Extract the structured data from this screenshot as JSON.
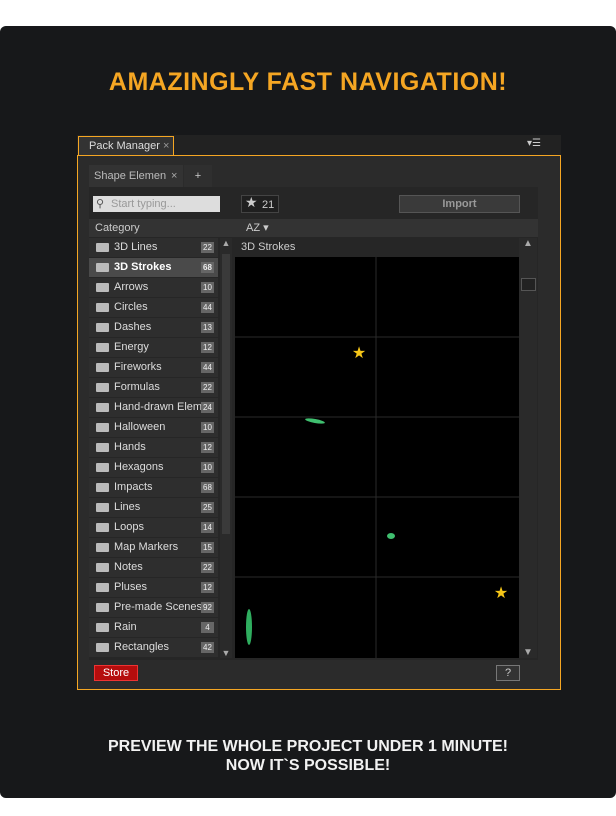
{
  "header": {
    "title": "AMAZINGLY FAST NAVIGATION!"
  },
  "panel": {
    "tab": "Pack Manager",
    "subtab": "Shape Elemen",
    "add_tab": "+",
    "search_placeholder": "Start typing...",
    "favorites": 21,
    "import": "Import",
    "category_header": "Category",
    "sort": "AZ",
    "preview_title": "3D Strokes",
    "store": "Store",
    "help": "?",
    "categories": [
      {
        "name": "3D Lines",
        "count": 22
      },
      {
        "name": "3D Strokes",
        "count": 68
      },
      {
        "name": "Arrows",
        "count": 10
      },
      {
        "name": "Circles",
        "count": 44
      },
      {
        "name": "Dashes",
        "count": 13
      },
      {
        "name": "Energy",
        "count": 12
      },
      {
        "name": "Fireworks",
        "count": 44
      },
      {
        "name": "Formulas",
        "count": 22
      },
      {
        "name": "Hand-drawn Elem",
        "count": 24
      },
      {
        "name": "Halloween",
        "count": 10
      },
      {
        "name": "Hands",
        "count": 12
      },
      {
        "name": "Hexagons",
        "count": 10
      },
      {
        "name": "Impacts",
        "count": 68
      },
      {
        "name": "Lines",
        "count": 25
      },
      {
        "name": "Loops",
        "count": 14
      },
      {
        "name": "Map Markers",
        "count": 15
      },
      {
        "name": "Notes",
        "count": 22
      },
      {
        "name": "Pluses",
        "count": 12
      },
      {
        "name": "Pre-made Scenes",
        "count": 92
      },
      {
        "name": "Rain",
        "count": 4
      },
      {
        "name": "Rectangles",
        "count": 42
      }
    ]
  },
  "footer": {
    "line1": "PREVIEW THE WHOLE PROJECT UNDER 1 MINUTE!",
    "line2": "NOW IT`S POSSIBLE!"
  }
}
